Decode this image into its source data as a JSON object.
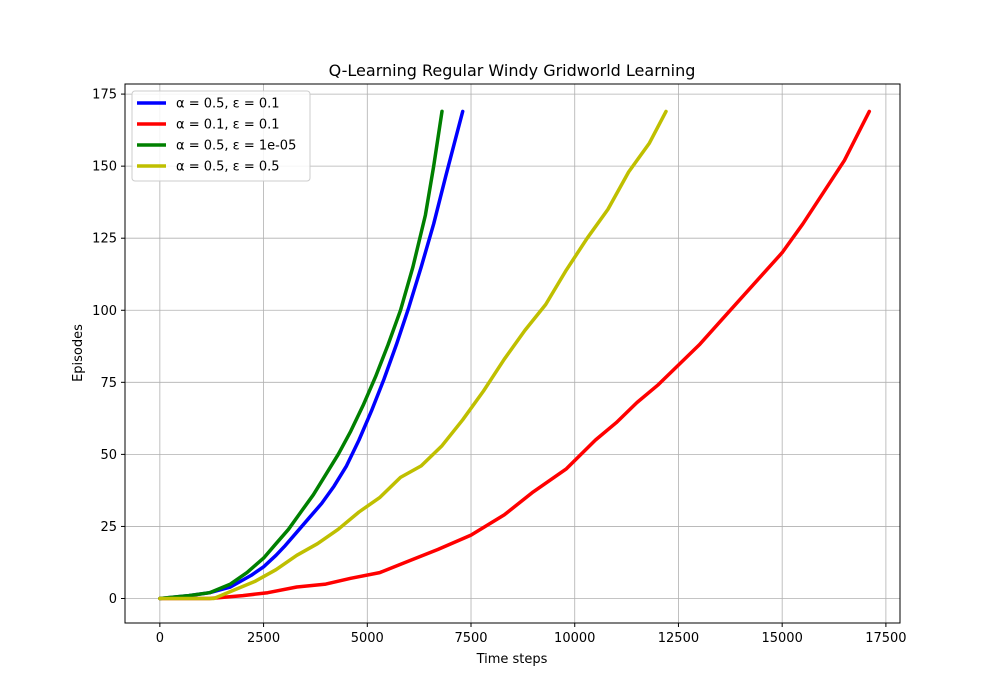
{
  "chart_data": {
    "type": "line",
    "title": "Q-Learning Regular Windy Gridworld Learning",
    "xlabel": "Time steps",
    "ylabel": "Episodes",
    "xlim": [
      -840,
      17840
    ],
    "ylim": [
      -8.5,
      178.5
    ],
    "xticks": [
      0,
      2500,
      5000,
      7500,
      10000,
      12500,
      15000,
      17500
    ],
    "yticks": [
      0,
      25,
      50,
      75,
      100,
      125,
      150,
      175
    ],
    "grid": true,
    "legend_position": "upper-left",
    "series": [
      {
        "name": "α = 0.5, ε = 0.1",
        "color": "#0000ff",
        "x": [
          0,
          700,
          1200,
          1700,
          2200,
          2500,
          2800,
          3000,
          3300,
          3600,
          3900,
          4200,
          4500,
          4800,
          5100,
          5400,
          5700,
          6000,
          6300,
          6600,
          6900,
          7100,
          7300
        ],
        "y": [
          0,
          1,
          2,
          4,
          8,
          11,
          15,
          18,
          23,
          28,
          33,
          39,
          46,
          55,
          65,
          76,
          88,
          101,
          115,
          130,
          147,
          158,
          169
        ]
      },
      {
        "name": "α = 0.1, ε = 0.1",
        "color": "#ff0000",
        "x": [
          0,
          1200,
          2000,
          2600,
          3300,
          4000,
          4600,
          5300,
          6000,
          6700,
          7500,
          8300,
          9000,
          9800,
          10500,
          11000,
          11500,
          12000,
          12500,
          13000,
          13500,
          14000,
          14500,
          15000,
          15500,
          16000,
          16500,
          17100
        ],
        "y": [
          0,
          0,
          1,
          2,
          4,
          5,
          7,
          9,
          13,
          17,
          22,
          29,
          37,
          45,
          55,
          61,
          68,
          74,
          81,
          88,
          96,
          104,
          112,
          120,
          130,
          141,
          152,
          169
        ]
      },
      {
        "name": "α = 0.5, ε = 1e-05",
        "color": "#008000",
        "x": [
          0,
          700,
          1200,
          1700,
          2100,
          2500,
          2800,
          3100,
          3400,
          3700,
          4000,
          4300,
          4600,
          4900,
          5200,
          5500,
          5800,
          6100,
          6400,
          6600,
          6800
        ],
        "y": [
          0,
          1,
          2,
          5,
          9,
          14,
          19,
          24,
          30,
          36,
          43,
          50,
          58,
          67,
          77,
          88,
          100,
          115,
          133,
          150,
          169
        ]
      },
      {
        "name": "α = 0.5, ε = 0.5",
        "color": "#bfbf00",
        "x": [
          0,
          1300,
          1800,
          2300,
          2800,
          3300,
          3800,
          4300,
          4800,
          5300,
          5800,
          6300,
          6800,
          7300,
          7800,
          8300,
          8800,
          9300,
          9800,
          10300,
          10800,
          11300,
          11800,
          12200
        ],
        "y": [
          0,
          0,
          3,
          6,
          10,
          15,
          19,
          24,
          30,
          35,
          42,
          46,
          53,
          62,
          72,
          83,
          93,
          102,
          114,
          125,
          135,
          148,
          158,
          169
        ]
      }
    ]
  }
}
